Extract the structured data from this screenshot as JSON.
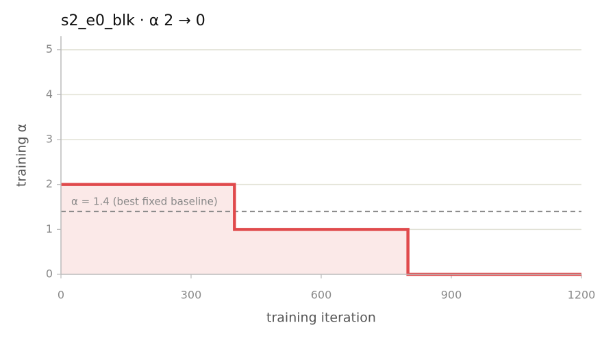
{
  "chart_data": {
    "type": "step",
    "title": "s2_e0_blk   ·   α 2 → 0",
    "x": [
      0,
      400,
      800,
      1200
    ],
    "values": [
      2,
      1,
      0,
      0
    ],
    "color": "#e04a4c",
    "fill": "#fbe9e8",
    "xlabel": "training iteration",
    "ylabel": "training α",
    "xlim": [
      0,
      1200
    ],
    "xticks": [
      0,
      300,
      600,
      900,
      1200
    ],
    "ylim": [
      0,
      5.3
    ],
    "yticks": [
      0,
      1,
      2,
      3,
      4,
      5
    ],
    "grid": true,
    "reference": {
      "value": 1.4,
      "label": "α = 1.4 (best fixed baseline)",
      "color": "#888888"
    }
  }
}
